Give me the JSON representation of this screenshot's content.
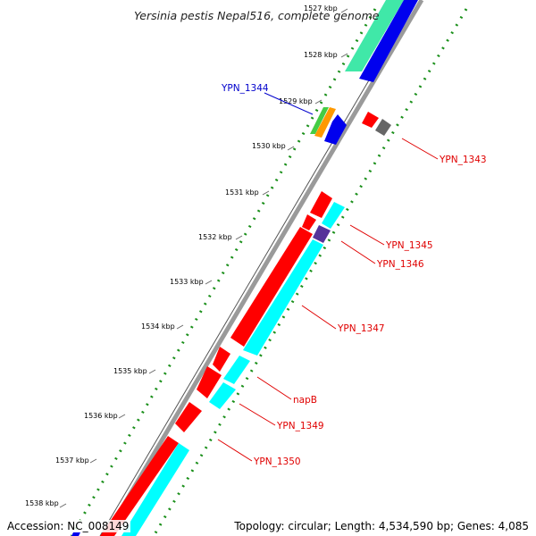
{
  "title": "Yersinia pestis Nepal516, complete genome",
  "accession": "Accession: NC_008149",
  "summary": "Topology: circular; Length: 4,534,590 bp; Genes: 4,085",
  "colors": {
    "backbone": "#8a8a8a",
    "forward_cds": "#ff0000",
    "reverse_cds": "#00ffff",
    "blue_feature": "#0000ff",
    "gc_dots": "#1a8f1a",
    "gene_label": "#e00000",
    "highlight_label": "#0000cc"
  },
  "ticks": [
    {
      "label": "1527 kbp"
    },
    {
      "label": "1528 kbp"
    },
    {
      "label": "1529 kbp"
    },
    {
      "label": "1530 kbp"
    },
    {
      "label": "1531 kbp"
    },
    {
      "label": "1532 kbp"
    },
    {
      "label": "1533 kbp"
    },
    {
      "label": "1534 kbp"
    },
    {
      "label": "1535 kbp"
    },
    {
      "label": "1536 kbp"
    },
    {
      "label": "1537 kbp"
    },
    {
      "label": "1538 kbp"
    }
  ],
  "gene_labels": [
    {
      "name": "YPN_1344",
      "color": "#0000cc"
    },
    {
      "name": "YPN_1343",
      "color": "#e00000"
    },
    {
      "name": "YPN_1345",
      "color": "#e00000"
    },
    {
      "name": "YPN_1346",
      "color": "#e00000"
    },
    {
      "name": "YPN_1347",
      "color": "#e00000"
    },
    {
      "name": "napB",
      "color": "#e00000"
    },
    {
      "name": "YPN_1349",
      "color": "#e00000"
    },
    {
      "name": "YPN_1350",
      "color": "#e00000"
    }
  ]
}
